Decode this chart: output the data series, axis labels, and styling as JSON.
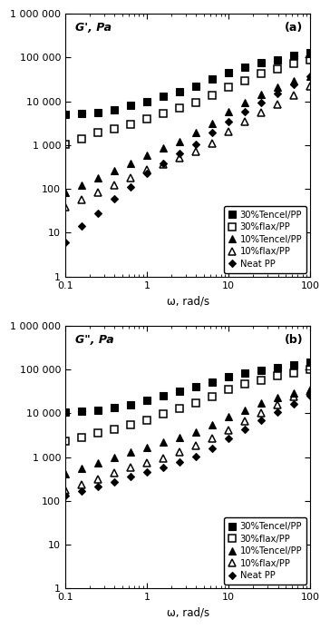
{
  "omega": [
    0.1,
    0.158,
    0.251,
    0.398,
    0.631,
    1.0,
    1.585,
    2.512,
    3.981,
    6.31,
    10.0,
    15.85,
    25.12,
    39.81,
    63.1,
    100.0
  ],
  "Gp_30tencel": [
    5000,
    5200,
    5500,
    6500,
    8000,
    10000,
    13000,
    17000,
    22000,
    32000,
    45000,
    60000,
    75000,
    90000,
    110000,
    130000
  ],
  "Gp_30flax": [
    1050,
    1400,
    1900,
    2400,
    3000,
    4000,
    5200,
    7000,
    9500,
    14000,
    21000,
    30000,
    43000,
    56000,
    72000,
    88000
  ],
  "Gp_10tencel": [
    85,
    125,
    175,
    260,
    380,
    580,
    850,
    1200,
    1900,
    3200,
    5800,
    9500,
    14500,
    21000,
    29000,
    37000
  ],
  "Gp_10flax": [
    38,
    58,
    85,
    125,
    180,
    270,
    370,
    500,
    700,
    1100,
    2000,
    3500,
    5500,
    8500,
    14000,
    22000
  ],
  "Gp_neatPP": [
    6,
    14,
    28,
    60,
    110,
    230,
    380,
    650,
    1050,
    1900,
    3400,
    5800,
    9500,
    15000,
    24000,
    37000
  ],
  "Gpp_30tencel": [
    10500,
    11000,
    12000,
    13500,
    16000,
    20000,
    25000,
    32000,
    40000,
    52000,
    68000,
    82000,
    98000,
    112000,
    128000,
    145000
  ],
  "Gpp_30flax": [
    2300,
    2800,
    3500,
    4400,
    5500,
    7000,
    9500,
    13000,
    17000,
    24000,
    35000,
    46000,
    58000,
    72000,
    85000,
    100000
  ],
  "Gpp_10tencel": [
    420,
    560,
    750,
    980,
    1300,
    1700,
    2200,
    2800,
    3800,
    5500,
    8500,
    12000,
    17000,
    23000,
    29000,
    35000
  ],
  "Gpp_10flax": [
    180,
    240,
    320,
    430,
    570,
    730,
    960,
    1280,
    1800,
    2700,
    4200,
    6500,
    10000,
    16000,
    24000,
    32000
  ],
  "Gpp_neatPP": [
    130,
    165,
    210,
    275,
    360,
    460,
    590,
    780,
    1050,
    1600,
    2700,
    4300,
    6800,
    10500,
    16500,
    25000
  ],
  "legend_labels": [
    "30%Tencel/PP",
    "30%flax/PP",
    "10%Tencel/PP",
    "10%flax/PP",
    "Neat PP"
  ],
  "ylabel_a": "G', Pa",
  "ylabel_b": "G\", Pa",
  "xlabel": "ω, rad/s",
  "label_a": "(a)",
  "label_b": "(b)",
  "ylim": [
    1,
    1000000
  ],
  "xlim": [
    0.1,
    100
  ],
  "yticks": [
    1,
    10,
    100,
    1000,
    10000,
    100000,
    1000000
  ],
  "ytick_labels": [
    "1",
    "10",
    "100",
    "1 000",
    "10 000",
    "100 000",
    "1 000 000"
  ],
  "xtick_labels": {
    "0.1": "0.1",
    "1.0": "1",
    "10.0": "10",
    "100.0": "100"
  }
}
